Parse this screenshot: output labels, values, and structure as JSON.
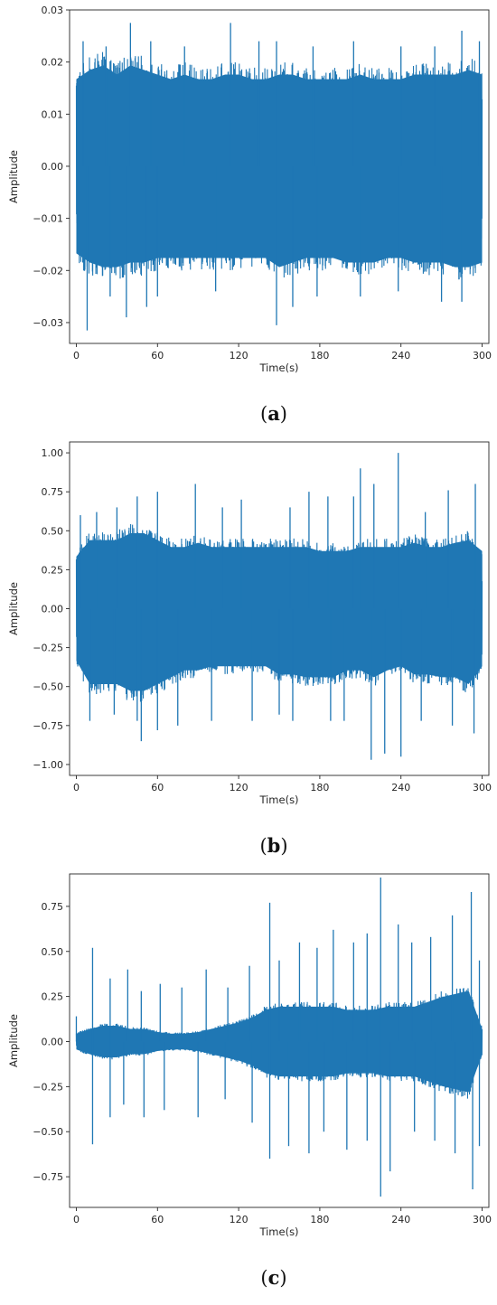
{
  "chart_data": [
    {
      "id": "a",
      "type": "line",
      "caption_letter": "a",
      "xlabel": "Time(s)",
      "ylabel": "Amplitude",
      "xlim": [
        -5,
        305
      ],
      "ylim": [
        -0.034,
        0.03
      ],
      "xticks": [
        0,
        60,
        120,
        180,
        240,
        300
      ],
      "xtick_labels": [
        "0",
        "60",
        "120",
        "180",
        "240",
        "300"
      ],
      "yticks": [
        -0.03,
        -0.02,
        -0.01,
        0.0,
        0.01,
        0.02,
        0.03
      ],
      "ytick_labels": [
        "−0.03",
        "−0.02",
        "−0.01",
        "0.00",
        "0.01",
        "0.02",
        "0.03"
      ],
      "grid": false,
      "color": "#1f77b4",
      "series": [
        {
          "envelope": {
            "x": [
              0,
              10,
              20,
              30,
              40,
              50,
              60,
              70,
              80,
              90,
              100,
              110,
              120,
              130,
              140,
              150,
              160,
              170,
              180,
              190,
              200,
              210,
              220,
              230,
              240,
              250,
              260,
              270,
              280,
              290,
              300
            ],
            "upper": [
              0.019,
              0.021,
              0.022,
              0.02,
              0.022,
              0.021,
              0.02,
              0.019,
              0.02,
              0.019,
              0.019,
              0.02,
              0.02,
              0.019,
              0.019,
              0.02,
              0.02,
              0.019,
              0.019,
              0.019,
              0.019,
              0.02,
              0.019,
              0.019,
              0.019,
              0.02,
              0.02,
              0.02,
              0.02,
              0.021,
              0.02
            ],
            "lower": [
              -0.019,
              -0.021,
              -0.022,
              -0.022,
              -0.021,
              -0.021,
              -0.02,
              -0.02,
              -0.02,
              -0.02,
              -0.02,
              -0.02,
              -0.02,
              -0.02,
              -0.02,
              -0.022,
              -0.021,
              -0.02,
              -0.02,
              -0.02,
              -0.021,
              -0.021,
              -0.021,
              -0.02,
              -0.02,
              -0.021,
              -0.021,
              -0.021,
              -0.022,
              -0.022,
              -0.021
            ]
          },
          "peaks": [
            [
              5,
              0.024
            ],
            [
              22,
              0.023
            ],
            [
              40,
              0.0275
            ],
            [
              55,
              0.024
            ],
            [
              80,
              0.023
            ],
            [
              114,
              0.0275
            ],
            [
              135,
              0.024
            ],
            [
              148,
              0.024
            ],
            [
              175,
              0.023
            ],
            [
              205,
              0.024
            ],
            [
              240,
              0.023
            ],
            [
              265,
              0.023
            ],
            [
              285,
              0.026
            ],
            [
              298,
              0.024
            ],
            [
              8,
              -0.0315
            ],
            [
              25,
              -0.025
            ],
            [
              37,
              -0.029
            ],
            [
              52,
              -0.027
            ],
            [
              60,
              -0.025
            ],
            [
              103,
              -0.024
            ],
            [
              148,
              -0.0305
            ],
            [
              160,
              -0.027
            ],
            [
              178,
              -0.025
            ],
            [
              210,
              -0.025
            ],
            [
              238,
              -0.024
            ],
            [
              270,
              -0.026
            ],
            [
              285,
              -0.026
            ]
          ]
        }
      ]
    },
    {
      "id": "b",
      "type": "line",
      "caption_letter": "b",
      "xlabel": "Time(s)",
      "ylabel": "Amplitude",
      "xlim": [
        -5,
        305
      ],
      "ylim": [
        -1.07,
        1.07
      ],
      "xticks": [
        0,
        60,
        120,
        180,
        240,
        300
      ],
      "xtick_labels": [
        "0",
        "60",
        "120",
        "180",
        "240",
        "300"
      ],
      "yticks": [
        -1.0,
        -0.75,
        -0.5,
        -0.25,
        0.0,
        0.25,
        0.5,
        0.75,
        1.0
      ],
      "ytick_labels": [
        "−1.00",
        "−0.75",
        "−0.50",
        "−0.25",
        "0.00",
        "0.25",
        "0.50",
        "0.75",
        "1.00"
      ],
      "grid": false,
      "color": "#1f77b4",
      "series": [
        {
          "envelope": {
            "x": [
              0,
              10,
              20,
              30,
              40,
              50,
              60,
              70,
              80,
              90,
              100,
              110,
              120,
              130,
              140,
              150,
              160,
              170,
              180,
              190,
              200,
              210,
              220,
              230,
              240,
              250,
              260,
              270,
              280,
              290,
              300
            ],
            "upper": [
              0.38,
              0.5,
              0.5,
              0.5,
              0.55,
              0.55,
              0.5,
              0.45,
              0.45,
              0.48,
              0.45,
              0.45,
              0.45,
              0.45,
              0.45,
              0.45,
              0.45,
              0.45,
              0.42,
              0.42,
              0.42,
              0.45,
              0.45,
              0.45,
              0.45,
              0.48,
              0.45,
              0.45,
              0.48,
              0.5,
              0.42
            ],
            "lower": [
              -0.38,
              -0.55,
              -0.55,
              -0.55,
              -0.6,
              -0.6,
              -0.55,
              -0.5,
              -0.45,
              -0.45,
              -0.42,
              -0.42,
              -0.42,
              -0.42,
              -0.42,
              -0.48,
              -0.48,
              -0.5,
              -0.5,
              -0.5,
              -0.45,
              -0.45,
              -0.5,
              -0.45,
              -0.42,
              -0.48,
              -0.48,
              -0.5,
              -0.5,
              -0.55,
              -0.42
            ]
          },
          "peaks": [
            [
              3,
              0.6
            ],
            [
              15,
              0.62
            ],
            [
              30,
              0.65
            ],
            [
              45,
              0.72
            ],
            [
              60,
              0.75
            ],
            [
              88,
              0.8
            ],
            [
              108,
              0.65
            ],
            [
              122,
              0.7
            ],
            [
              158,
              0.65
            ],
            [
              172,
              0.75
            ],
            [
              186,
              0.72
            ],
            [
              205,
              0.72
            ],
            [
              210,
              0.9
            ],
            [
              220,
              0.8
            ],
            [
              238,
              1.0
            ],
            [
              258,
              0.62
            ],
            [
              275,
              0.76
            ],
            [
              295,
              0.8
            ],
            [
              10,
              -0.72
            ],
            [
              28,
              -0.68
            ],
            [
              45,
              -0.72
            ],
            [
              48,
              -0.85
            ],
            [
              60,
              -0.78
            ],
            [
              75,
              -0.75
            ],
            [
              100,
              -0.72
            ],
            [
              130,
              -0.72
            ],
            [
              150,
              -0.68
            ],
            [
              160,
              -0.72
            ],
            [
              188,
              -0.72
            ],
            [
              198,
              -0.72
            ],
            [
              218,
              -0.97
            ],
            [
              228,
              -0.93
            ],
            [
              240,
              -0.95
            ],
            [
              255,
              -0.72
            ],
            [
              278,
              -0.75
            ],
            [
              294,
              -0.8
            ]
          ]
        }
      ]
    },
    {
      "id": "c",
      "type": "line",
      "caption_letter": "c",
      "xlabel": "Time(s)",
      "ylabel": "Amplitude",
      "xlim": [
        -5,
        305
      ],
      "ylim": [
        -0.92,
        0.93
      ],
      "xticks": [
        0,
        60,
        120,
        180,
        240,
        300
      ],
      "xtick_labels": [
        "0",
        "60",
        "120",
        "180",
        "240",
        "300"
      ],
      "yticks": [
        -0.75,
        -0.5,
        -0.25,
        0.0,
        0.25,
        0.5,
        0.75
      ],
      "ytick_labels": [
        "−0.75",
        "−0.50",
        "−0.25",
        "0.00",
        "0.25",
        "0.50",
        "0.75"
      ],
      "grid": false,
      "color": "#1f77b4",
      "series": [
        {
          "envelope": {
            "x": [
              0,
              10,
              20,
              30,
              40,
              50,
              60,
              70,
              80,
              90,
              100,
              110,
              120,
              130,
              140,
              150,
              160,
              170,
              180,
              190,
              200,
              210,
              220,
              230,
              240,
              250,
              260,
              270,
              280,
              290,
              300
            ],
            "upper": [
              0.05,
              0.08,
              0.1,
              0.1,
              0.08,
              0.08,
              0.06,
              0.05,
              0.05,
              0.06,
              0.08,
              0.1,
              0.12,
              0.15,
              0.2,
              0.22,
              0.22,
              0.22,
              0.22,
              0.22,
              0.2,
              0.2,
              0.2,
              0.22,
              0.22,
              0.22,
              0.25,
              0.28,
              0.3,
              0.32,
              0.08
            ],
            "lower": [
              -0.05,
              -0.08,
              -0.1,
              -0.1,
              -0.08,
              -0.08,
              -0.06,
              -0.05,
              -0.05,
              -0.06,
              -0.08,
              -0.1,
              -0.12,
              -0.15,
              -0.2,
              -0.22,
              -0.22,
              -0.22,
              -0.22,
              -0.22,
              -0.2,
              -0.2,
              -0.2,
              -0.22,
              -0.22,
              -0.22,
              -0.25,
              -0.28,
              -0.3,
              -0.32,
              -0.08
            ]
          },
          "peaks": [
            [
              0,
              0.14
            ],
            [
              12,
              0.52
            ],
            [
              25,
              0.35
            ],
            [
              38,
              0.4
            ],
            [
              48,
              0.28
            ],
            [
              62,
              0.32
            ],
            [
              78,
              0.3
            ],
            [
              96,
              0.4
            ],
            [
              112,
              0.3
            ],
            [
              128,
              0.42
            ],
            [
              143,
              0.77
            ],
            [
              150,
              0.45
            ],
            [
              165,
              0.55
            ],
            [
              178,
              0.52
            ],
            [
              190,
              0.62
            ],
            [
              205,
              0.55
            ],
            [
              215,
              0.6
            ],
            [
              225,
              0.91
            ],
            [
              238,
              0.65
            ],
            [
              248,
              0.55
            ],
            [
              262,
              0.58
            ],
            [
              278,
              0.7
            ],
            [
              292,
              0.83
            ],
            [
              298,
              0.45
            ],
            [
              12,
              -0.57
            ],
            [
              25,
              -0.42
            ],
            [
              35,
              -0.35
            ],
            [
              50,
              -0.42
            ],
            [
              65,
              -0.38
            ],
            [
              90,
              -0.42
            ],
            [
              110,
              -0.32
            ],
            [
              130,
              -0.45
            ],
            [
              143,
              -0.65
            ],
            [
              157,
              -0.58
            ],
            [
              172,
              -0.62
            ],
            [
              183,
              -0.5
            ],
            [
              200,
              -0.6
            ],
            [
              215,
              -0.55
            ],
            [
              225,
              -0.86
            ],
            [
              232,
              -0.72
            ],
            [
              250,
              -0.5
            ],
            [
              265,
              -0.55
            ],
            [
              280,
              -0.62
            ],
            [
              293,
              -0.82
            ],
            [
              298,
              -0.58
            ]
          ]
        }
      ]
    }
  ]
}
